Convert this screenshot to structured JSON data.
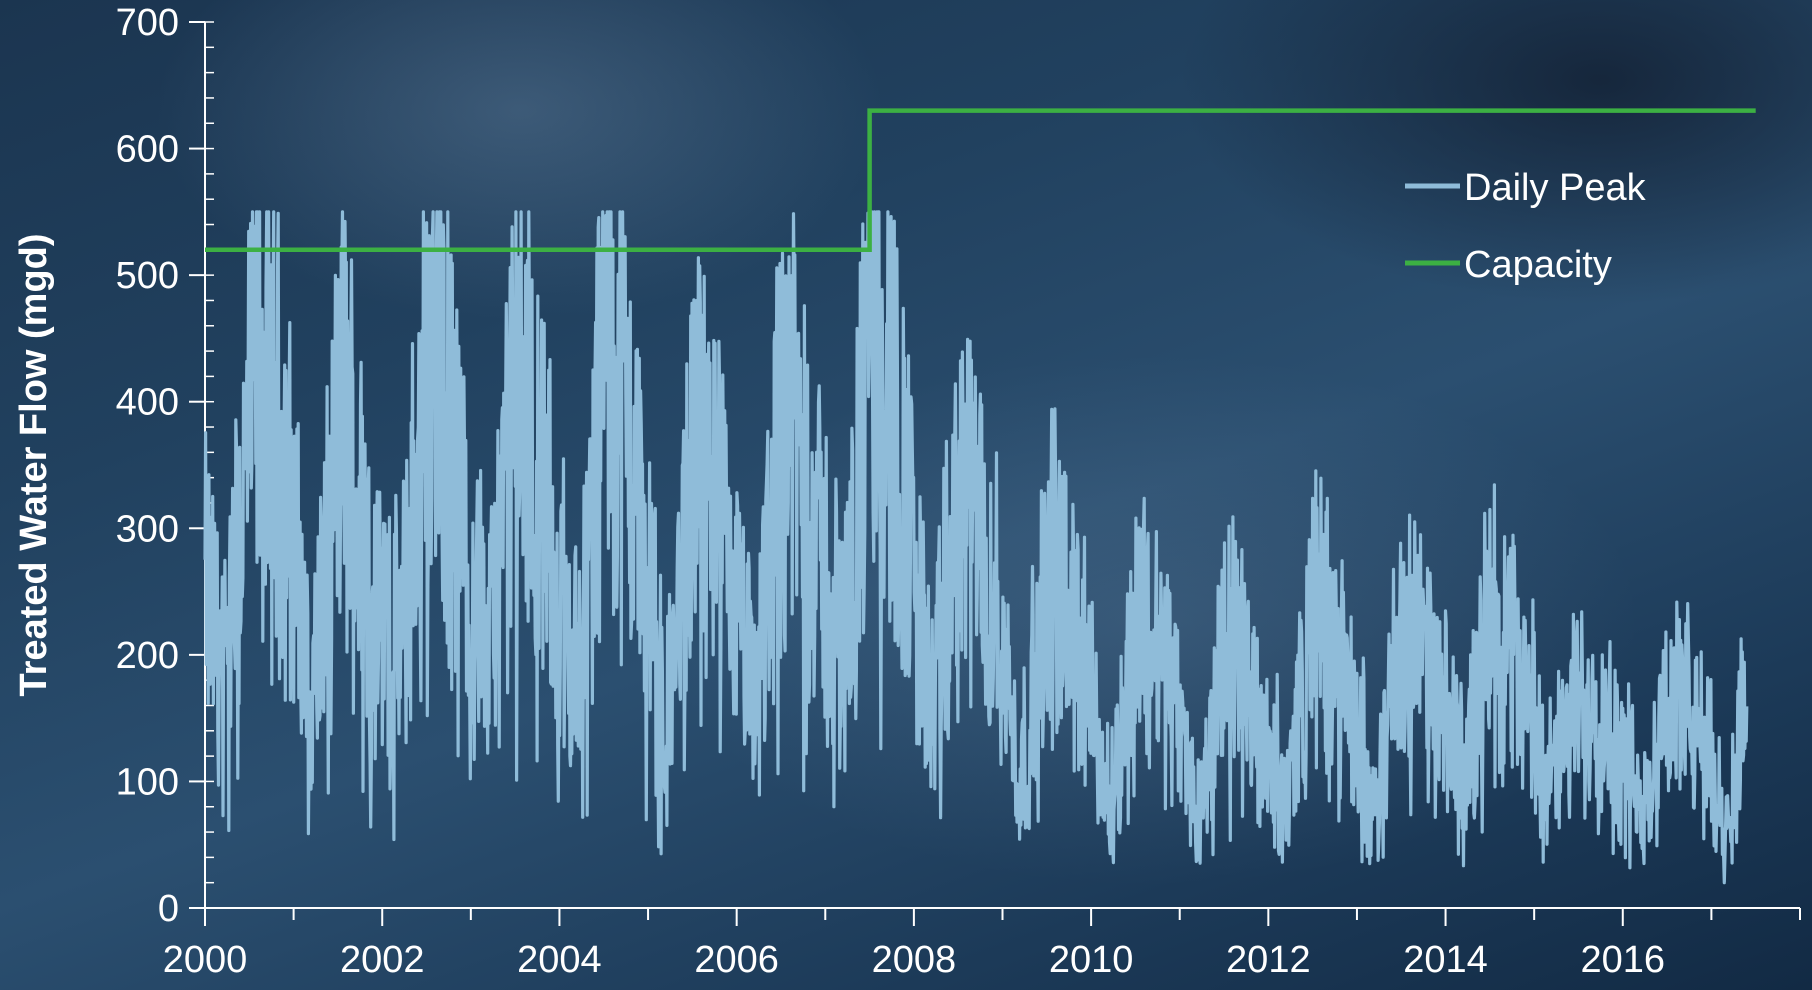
{
  "chart_data": {
    "type": "line",
    "ylabel": "Treated Water Flow (mgd)",
    "xlabel": "",
    "xlim": [
      2000,
      2018
    ],
    "ylim": [
      0,
      700
    ],
    "x_ticks": [
      2000,
      2002,
      2004,
      2006,
      2008,
      2010,
      2012,
      2014,
      2016
    ],
    "x_tick_labels": [
      "2000",
      "2002",
      "2004",
      "2006",
      "2008",
      "2010",
      "2012",
      "2014",
      "2016"
    ],
    "y_ticks": [
      0,
      100,
      200,
      300,
      400,
      500,
      600,
      700
    ],
    "y_tick_labels": [
      "0",
      "100",
      "200",
      "300",
      "400",
      "500",
      "600",
      "700"
    ],
    "legend": {
      "position": "upper-right"
    },
    "series": [
      {
        "name": "Daily Peak",
        "color": "#8fbcd9",
        "x": [
          2000.0,
          2000.25,
          2000.55,
          2000.9,
          2001.2,
          2001.55,
          2001.9,
          2002.2,
          2002.55,
          2002.9,
          2003.2,
          2003.55,
          2003.9,
          2004.2,
          2004.55,
          2004.9,
          2005.2,
          2005.55,
          2005.9,
          2006.2,
          2006.55,
          2006.9,
          2007.2,
          2007.55,
          2007.9,
          2008.2,
          2008.55,
          2008.9,
          2009.2,
          2009.55,
          2009.9,
          2010.2,
          2010.55,
          2010.9,
          2011.2,
          2011.55,
          2011.9,
          2012.2,
          2012.55,
          2012.9,
          2013.2,
          2013.55,
          2013.9,
          2014.2,
          2014.55,
          2014.9,
          2015.2,
          2015.55,
          2015.9,
          2016.2,
          2016.55,
          2016.9,
          2017.2,
          2017.4
        ],
        "y": [
          250,
          180,
          420,
          350,
          160,
          400,
          240,
          200,
          460,
          300,
          200,
          420,
          280,
          180,
          470,
          320,
          130,
          380,
          260,
          160,
          420,
          290,
          200,
          460,
          330,
          150,
          330,
          250,
          100,
          270,
          200,
          80,
          230,
          180,
          70,
          210,
          150,
          90,
          240,
          160,
          90,
          230,
          160,
          110,
          240,
          170,
          100,
          170,
          140,
          80,
          170,
          130,
          60,
          200
        ],
        "peak_high": 550,
        "peak_low": 20
      },
      {
        "name": "Capacity",
        "color": "#3cb043",
        "x": [
          2000.0,
          2007.5,
          2007.5,
          2017.5
        ],
        "y": [
          520,
          520,
          630,
          630
        ]
      }
    ]
  }
}
